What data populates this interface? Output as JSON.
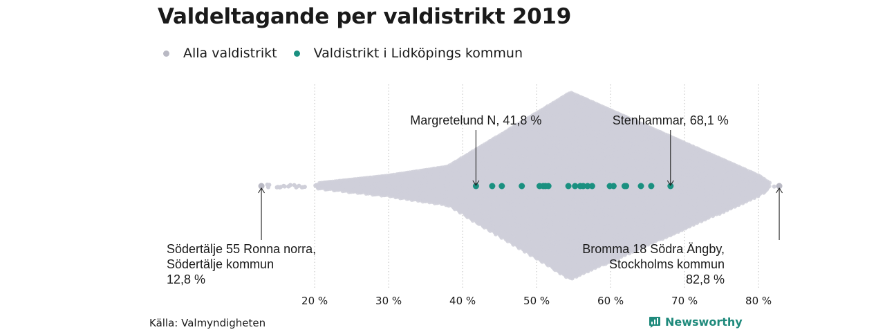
{
  "colors": {
    "all": "#cfcfd9",
    "highlight": "#1a9080",
    "extreme": "#b9b9c4"
  },
  "chart_data": {
    "type": "scatter",
    "title": "Valdeltagande per valdistrikt 2019",
    "xlim": [
      12.8,
      82.8
    ],
    "x_ticks": [
      20,
      30,
      40,
      50,
      60,
      70,
      80
    ],
    "x_tick_labels": [
      "20 %",
      "30 %",
      "40 %",
      "50 %",
      "60 %",
      "70 %",
      "80 %"
    ],
    "grid": "vertical dotted",
    "legend": {
      "placement": "top-left",
      "entries": [
        {
          "label": "Alla valdistrikt",
          "color": "#b9b9c4"
        },
        {
          "label": "Valdistrikt i Lidköpings kommun",
          "color": "#1a9080"
        }
      ]
    },
    "series": [
      {
        "name": "Valdistrikt i Lidköpings kommun",
        "values": [
          41.8,
          44.0,
          45.3,
          48.0,
          50.4,
          50.9,
          51.2,
          51.6,
          54.3,
          55.2,
          55.9,
          56.3,
          56.9,
          57.5,
          59.9,
          60.4,
          61.9,
          62.1,
          64.1,
          65.5,
          68.1
        ]
      },
      {
        "name": "Alla valdistrikt",
        "distribution_peak": 54.6,
        "min": 12.8,
        "max": 82.8
      }
    ],
    "annotations": [
      {
        "x": 41.8,
        "position": "above",
        "text": "Margretelund N, 41,8 %"
      },
      {
        "x": 68.1,
        "position": "above",
        "text": "Stenhammar, 68,1 %"
      },
      {
        "x": 12.8,
        "position": "below-left",
        "lines": [
          "Södertälje 55 Ronna norra,",
          "Södertälje kommun",
          "12,8 %"
        ]
      },
      {
        "x": 82.8,
        "position": "below-right",
        "lines": [
          "Bromma 18 Södra Ängby,",
          "Stockholms kommun",
          "82,8 %"
        ]
      }
    ]
  },
  "footer": {
    "source": "Källa: Valmyndigheten",
    "brand": "Newsworthy"
  }
}
